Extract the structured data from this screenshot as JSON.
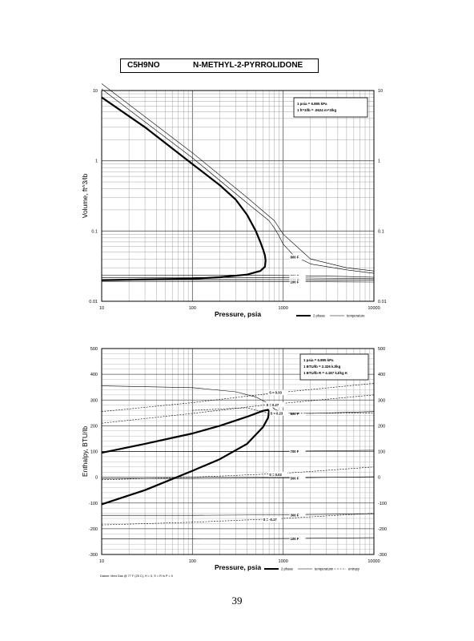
{
  "header": {
    "formula": "C5H9NO",
    "name": "N-METHYL-2-PYRROLIDONE"
  },
  "page_number": "39",
  "chart_data": [
    {
      "type": "line",
      "xscale": "log",
      "yscale": "log",
      "xlim": [
        10,
        10000
      ],
      "ylim": [
        0.01,
        10
      ],
      "xlabel": "Pressure, psia",
      "ylabel": "Volume, ft^3/lb",
      "x_ticks": [
        "10",
        "100",
        "1000",
        "10000"
      ],
      "y_ticks": [
        "10",
        "1",
        "0.1",
        "0.01"
      ],
      "conversion": [
        "1 psia = 6.895 kPa",
        "1 ft^3/lb = .0624 m^3/kg"
      ],
      "legend": [
        "2 phase",
        "temperature"
      ],
      "series": [
        {
          "name": "2 phase",
          "kind": "sat",
          "x": [
            10,
            30,
            100,
            200,
            300,
            400,
            500,
            560,
            600,
            630,
            640,
            630,
            560,
            400,
            200,
            100,
            30,
            10
          ],
          "y": [
            8.0,
            3.0,
            0.9,
            0.45,
            0.28,
            0.17,
            0.1,
            0.07,
            0.055,
            0.045,
            0.038,
            0.031,
            0.027,
            0.024,
            0.022,
            0.021,
            0.0205,
            0.02
          ]
        },
        {
          "name": "",
          "kind": "temp",
          "label": "800 F",
          "x": [
            10,
            100,
            400,
            700,
            800,
            900,
            1000,
            1300,
            2000,
            5000,
            10000
          ],
          "y": [
            10.5,
            1.1,
            0.25,
            0.14,
            0.11,
            0.085,
            0.065,
            0.045,
            0.034,
            0.028,
            0.025
          ]
        },
        {
          "name": "",
          "kind": "temp",
          "label": "",
          "x": [
            10,
            100,
            400,
            800,
            1000,
            2000,
            5000,
            10000
          ],
          "y": [
            12.5,
            1.3,
            0.3,
            0.14,
            0.09,
            0.04,
            0.03,
            0.027
          ]
        },
        {
          "name": "",
          "kind": "temp",
          "label": "700 F",
          "x": [
            10,
            300,
            1000,
            2000,
            5000,
            10000
          ],
          "y": [
            0.0235,
            0.0236,
            0.0233,
            0.023,
            0.0225,
            0.022
          ]
        },
        {
          "name": "",
          "kind": "temp",
          "label": "500 F",
          "x": [
            10,
            300,
            1000,
            2000,
            5000,
            10000
          ],
          "y": [
            0.0218,
            0.0218,
            0.0216,
            0.0214,
            0.0212,
            0.021
          ]
        },
        {
          "name": "",
          "kind": "temp",
          "label": "300 F",
          "x": [
            10,
            300,
            1000,
            2000,
            5000,
            10000
          ],
          "y": [
            0.0204,
            0.0204,
            0.0203,
            0.0202,
            0.0201,
            0.02
          ]
        },
        {
          "name": "",
          "kind": "temp",
          "label": "100 F",
          "x": [
            10,
            300,
            1000,
            2000,
            5000,
            10000
          ],
          "y": [
            0.0192,
            0.0192,
            0.0191,
            0.019,
            0.0189,
            0.0188
          ]
        }
      ],
      "grid": true
    },
    {
      "type": "line",
      "xscale": "log",
      "yscale": "linear",
      "xlim": [
        10,
        10000
      ],
      "ylim": [
        -300,
        500
      ],
      "xlabel": "Pressure, psia",
      "ylabel": "Enthalpy, BTU/lb",
      "x_ticks": [
        "10",
        "100",
        "1000",
        "10000"
      ],
      "y_ticks": [
        "500",
        "400",
        "300",
        "200",
        "100",
        "0",
        "-100",
        "-200",
        "-300"
      ],
      "conversion": [
        "1 psia = 6.895 kPa",
        "1 BTU/lb = 2.326 kJ/kg",
        "1 BTU/lb R = 4.187 kJ/kg K"
      ],
      "legend": [
        "2 phase",
        "temperature",
        "entropy"
      ],
      "datum_note": "Datum: Med Gas @ 77 F (25 C), H = 0, S = R ln P = 0",
      "series": [
        {
          "name": "2 phase",
          "kind": "sat",
          "x": [
            10,
            30,
            100,
            200,
            400,
            600,
            680,
            700,
            680,
            600,
            400,
            200,
            100,
            30,
            10
          ],
          "y": [
            95,
            130,
            170,
            200,
            235,
            258,
            262,
            255,
            230,
            195,
            130,
            70,
            25,
            -50,
            -105
          ]
        },
        {
          "name": "",
          "kind": "temp",
          "label": "800 F",
          "x": [
            10,
            100,
            300,
            500,
            700,
            800,
            1000,
            2000,
            5000,
            10000
          ],
          "y": [
            355,
            348,
            332,
            312,
            285,
            265,
            250,
            248,
            252,
            255
          ]
        },
        {
          "name": "",
          "kind": "temp",
          "label": "700 F",
          "x": [
            10,
            100,
            1000,
            10000
          ],
          "y": [
            100,
            100,
            101,
            105
          ]
        },
        {
          "name": "",
          "kind": "temp",
          "label": "500 F",
          "x": [
            10,
            100,
            1000,
            10000
          ],
          "y": [
            -5,
            -5,
            -3,
            2
          ]
        },
        {
          "name": "",
          "kind": "temp",
          "label": "300 F",
          "x": [
            10,
            100,
            1000,
            10000
          ],
          "y": [
            -148,
            -148,
            -146,
            -142
          ]
        },
        {
          "name": "",
          "kind": "temp",
          "label": "100 F",
          "x": [
            10,
            100,
            1000,
            10000
          ],
          "y": [
            -240,
            -240,
            -238,
            -235
          ]
        },
        {
          "name": "",
          "kind": "entropy",
          "label": "S = 0.33",
          "x": [
            10,
            100,
            700,
            10000
          ],
          "y": [
            255,
            290,
            325,
            365
          ]
        },
        {
          "name": "",
          "kind": "entropy",
          "label": "S = 0.27",
          "x": [
            10,
            100,
            600,
            10000
          ],
          "y": [
            210,
            248,
            280,
            320
          ]
        },
        {
          "name": "",
          "kind": "entropy",
          "label": "S = 0.23",
          "x": [
            100,
            400,
            700,
            10000
          ],
          "y": [
            260,
            270,
            248,
            250
          ]
        },
        {
          "name": "",
          "kind": "entropy",
          "label": "S = 0.02",
          "x": [
            10,
            100,
            1000,
            10000
          ],
          "y": [
            -10,
            0,
            15,
            40
          ]
        },
        {
          "name": "",
          "kind": "entropy",
          "label": "S = -0.17",
          "x": [
            10,
            100,
            1000,
            10000
          ],
          "y": [
            -185,
            -175,
            -160,
            -140
          ]
        }
      ],
      "grid": true
    }
  ]
}
